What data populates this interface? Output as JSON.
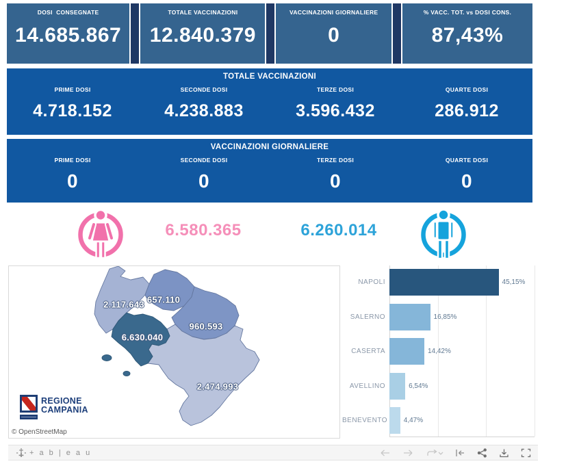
{
  "kpi_row": {
    "boxes": [
      {
        "label": "DOSI  CONSEGNATE",
        "value": "14.685.867"
      },
      {
        "label": "TOTALE VACCINAZIONI",
        "value": "12.840.379"
      },
      {
        "label": "VACCINAZIONI GIORNALIERE",
        "value": "0"
      },
      {
        "label": "% VACC. TOT. vs DOSI CONS.",
        "value": "87,43%"
      }
    ],
    "box_color": "#35648f",
    "divider_color": "#1f3864"
  },
  "totals_band": {
    "title": "TOTALE VACCINAZIONI",
    "background": "#1158a1",
    "columns": [
      {
        "label": "PRIME DOSI",
        "value": "4.718.152"
      },
      {
        "label": "SECONDE DOSI",
        "value": "4.238.883"
      },
      {
        "label": "TERZE DOSI",
        "value": "3.596.432"
      },
      {
        "label": "QUARTE DOSI",
        "value": "286.912"
      }
    ]
  },
  "daily_band": {
    "title": "VACCINAZIONI GIORNALIERE",
    "background": "#1158a1",
    "columns": [
      {
        "label": "PRIME DOSI",
        "value": "0"
      },
      {
        "label": "SECONDE DOSI",
        "value": "0"
      },
      {
        "label": "TERZE DOSI",
        "value": "0"
      },
      {
        "label": "QUARTE DOSI",
        "value": "0"
      }
    ]
  },
  "gender": {
    "female_total": "6.580.365",
    "male_total": "6.260.014",
    "female_color": "#f171ab",
    "female_number_color": "#f58fb9",
    "male_color": "#15a3dc",
    "male_number_color": "#2da3d9"
  },
  "map": {
    "attribution": "© OpenStreetMap",
    "logo": {
      "line1": "REGIONE",
      "line2": "CAMPANIA"
    },
    "regions": [
      {
        "name": "Caserta",
        "value": "2.117.643",
        "color": "#a5b3d4"
      },
      {
        "name": "Benevento",
        "value": "657.110",
        "color": "#7c93c4"
      },
      {
        "name": "Avellino",
        "value": "960.593",
        "color": "#7e95c5"
      },
      {
        "name": "Napoli",
        "value": "6.630.040",
        "color": "#3a698d"
      },
      {
        "name": "Salerno",
        "value": "2.474.993",
        "color": "#b9c3dc"
      }
    ]
  },
  "chart_data": {
    "type": "bar",
    "orientation": "horizontal",
    "categories": [
      "NAPOLI",
      "SALERNO",
      "CASERTA",
      "AVELLINO",
      "BENEVENTO"
    ],
    "values": [
      45.15,
      16.85,
      14.42,
      6.54,
      4.47
    ],
    "value_labels": [
      "45,15%",
      "16,85%",
      "14,42%",
      "6,54%",
      "4,47%"
    ],
    "bar_colors": [
      "#28567d",
      "#85b6d9",
      "#85b6d9",
      "#a9cfe5",
      "#bcdaec"
    ],
    "title": "",
    "xlabel": "",
    "ylabel": "",
    "xlim": [
      0,
      60
    ],
    "gridline_step": 20,
    "grid": true,
    "legend": false
  },
  "toolbar": {
    "logo_text": "+ a b | e a u",
    "icons": [
      "tableau-logo",
      "undo",
      "redo",
      "replay",
      "reset",
      "share",
      "download",
      "fullscreen"
    ]
  }
}
